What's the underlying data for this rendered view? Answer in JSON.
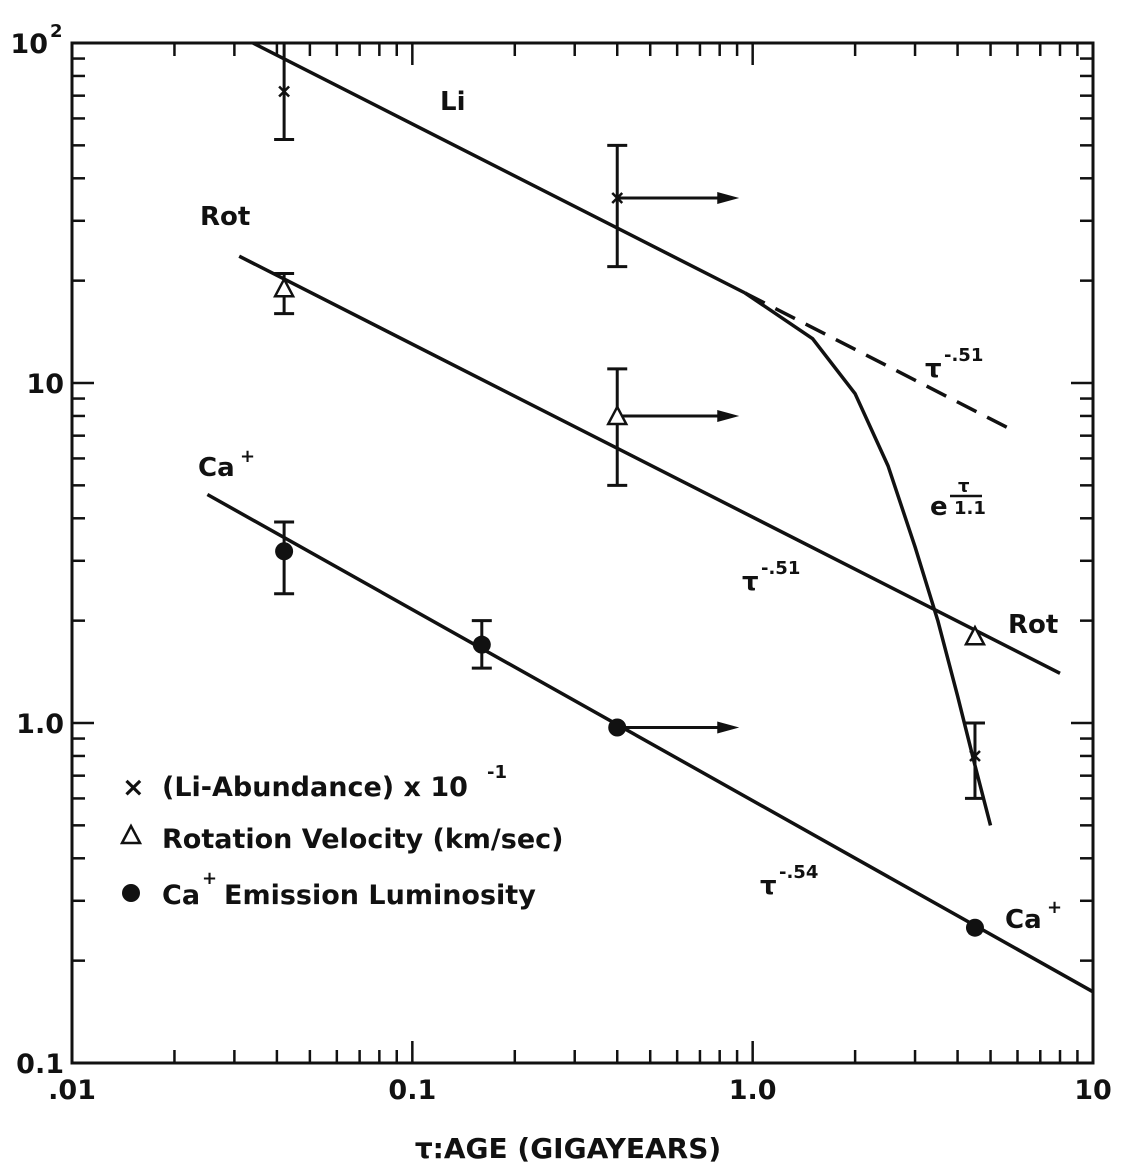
{
  "chart_data": {
    "type": "scatter",
    "x_scale": "log",
    "y_scale": "log",
    "xlim": [
      0.01,
      10
    ],
    "ylim": [
      0.1,
      100
    ],
    "xlabel": "τ:AGE (GIGAYEARS)",
    "ylabel": "",
    "grid": false,
    "x_major_ticks": [
      {
        "value": 0.01,
        "label": ".01"
      },
      {
        "value": 0.1,
        "label": "0.1"
      },
      {
        "value": 1,
        "label": "1.0"
      },
      {
        "value": 10,
        "label": "10"
      }
    ],
    "y_major_ticks": [
      {
        "value": 0.1,
        "label": "0.1"
      },
      {
        "value": 1,
        "label": "1.0"
      },
      {
        "value": 10,
        "label": "10"
      },
      {
        "value": 100,
        "label": "10",
        "sup": "2"
      }
    ],
    "series": [
      {
        "name": "(Li-Abundance) x 10-1",
        "marker": "x",
        "points": [
          {
            "x": 0.042,
            "y": 72,
            "err_low": 52,
            "err_high": 100
          },
          {
            "x": 0.4,
            "y": 35,
            "err_low": 22,
            "err_high": 50,
            "lower_limit_x": true
          },
          {
            "x": 4.5,
            "y": 0.8,
            "err_low": 0.6,
            "err_high": 1.0
          }
        ]
      },
      {
        "name": "Rotation Velocity (km/sec)",
        "marker": "triangle",
        "points": [
          {
            "x": 0.042,
            "y": 19,
            "err_low": 16,
            "err_high": 21
          },
          {
            "x": 0.4,
            "y": 8,
            "err_low": 5,
            "err_high": 11,
            "lower_limit_x": true
          },
          {
            "x": 4.5,
            "y": 1.8
          }
        ]
      },
      {
        "name": "Ca+ Emission Luminosity",
        "marker": "filled-circle",
        "points": [
          {
            "x": 0.042,
            "y": 3.2,
            "err_low": 2.4,
            "err_high": 3.9
          },
          {
            "x": 0.16,
            "y": 1.7,
            "err_low": 1.45,
            "err_high": 2.0
          },
          {
            "x": 0.4,
            "y": 0.97,
            "lower_limit_x": true
          },
          {
            "x": 4.5,
            "y": 0.25
          }
        ]
      }
    ],
    "fit_lines": [
      {
        "label": "Li",
        "style": "solid",
        "x": [
          0.034,
          0.95
        ],
        "y": [
          100,
          18.4
        ]
      },
      {
        "label": "τ-.51",
        "style": "dashed",
        "x": [
          0.95,
          5.6
        ],
        "y": [
          18.4,
          7.4
        ]
      },
      {
        "label": "e-τ/1.1",
        "style": "solid",
        "x": [
          0.95,
          1.5,
          2.0,
          2.5,
          3.0,
          3.5,
          4.0,
          4.5,
          5.0
        ],
        "y": [
          18.4,
          13.5,
          9.3,
          5.7,
          3.3,
          2.0,
          1.2,
          0.75,
          0.5
        ]
      },
      {
        "label": "Rot",
        "style": "solid",
        "x": [
          0.031,
          8.0
        ],
        "y": [
          23.6,
          1.4
        ]
      },
      {
        "label": "Ca+",
        "style": "solid",
        "x": [
          0.025,
          10.0
        ],
        "y": [
          4.7,
          0.162
        ]
      }
    ],
    "annotations": {
      "li": "Li",
      "rot_left": "Rot",
      "rot_right": "Rot",
      "ca_left": "Ca",
      "ca_right": "Ca",
      "ca_plus": "+",
      "tau": "τ",
      "exp_51_dash": "-.51",
      "exp_51_rot": "-.51",
      "exp_54": "-.54",
      "exp_e": "e",
      "exp_e_num": "τ",
      "exp_e_den": "1.1"
    },
    "legend": {
      "placement": "bottom-left",
      "items": [
        {
          "marker": "x",
          "symbol": "×",
          "text": "(Li-Abundance) x 10",
          "sup": "-1"
        },
        {
          "marker": "triangle",
          "symbol": "",
          "text": "Rotation Velocity (km/sec)",
          "sup": ""
        },
        {
          "marker": "filled-circle",
          "symbol": "",
          "text": "Ca",
          "sup": "+",
          "text_after": "Emission Luminosity"
        }
      ]
    }
  }
}
